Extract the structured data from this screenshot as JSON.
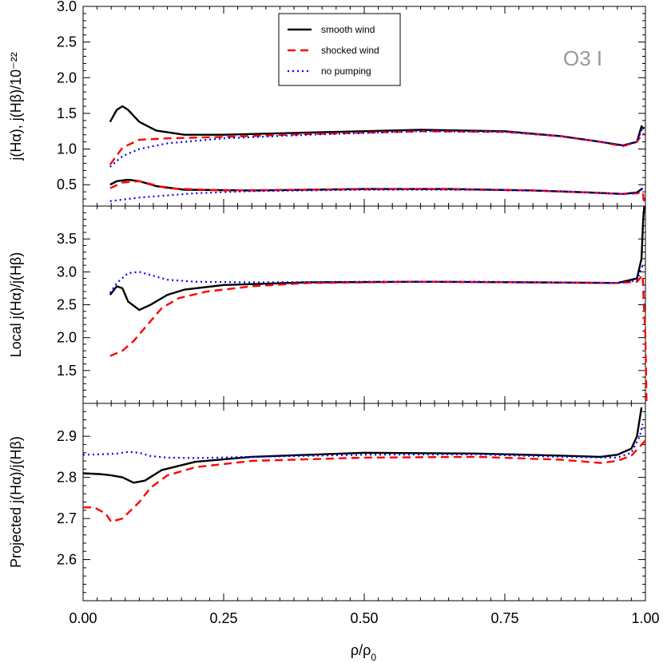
{
  "chart_data": {
    "type": "line",
    "annotation": "O3 I",
    "xlabel": "ρ/ρ₀",
    "xlim": [
      0.0,
      1.0
    ],
    "xticks": [
      "0.00",
      "0.25",
      "0.50",
      "0.75",
      "1.00"
    ],
    "legend": {
      "placement": "top-center",
      "entries": [
        {
          "name": "smooth wind",
          "color": "#000000",
          "style": "solid"
        },
        {
          "name": "shocked wind",
          "color": "#ff0000",
          "style": "dashed"
        },
        {
          "name": "no pumping",
          "color": "#0000ff",
          "style": "dotted"
        }
      ]
    },
    "panels": [
      {
        "id": "top",
        "ylabel": "j(Hα), j(Hβ)/10⁻²²",
        "ylim": [
          0.2,
          3.0
        ],
        "yticks": [
          "0.5",
          "1.0",
          "1.5",
          "2.0",
          "2.5",
          "3.0"
        ],
        "series": [
          {
            "name": "smooth wind",
            "subset": "j(Hα)",
            "x": [
              0.048,
              0.06,
              0.07,
              0.08,
              0.1,
              0.13,
              0.18,
              0.25,
              0.4,
              0.6,
              0.75,
              0.85,
              0.92,
              0.96,
              0.985,
              0.993,
              0.997
            ],
            "y": [
              1.38,
              1.55,
              1.6,
              1.55,
              1.38,
              1.26,
              1.2,
              1.2,
              1.23,
              1.27,
              1.25,
              1.18,
              1.1,
              1.05,
              1.1,
              1.32,
              1.28
            ]
          },
          {
            "name": "shocked wind",
            "subset": "j(Hα)",
            "x": [
              0.048,
              0.07,
              0.1,
              0.15,
              0.25,
              0.4,
              0.6,
              0.75,
              0.85,
              0.92,
              0.96,
              0.985,
              0.995,
              0.998
            ],
            "y": [
              0.78,
              1.02,
              1.13,
              1.15,
              1.17,
              1.21,
              1.25,
              1.24,
              1.18,
              1.1,
              1.04,
              1.1,
              1.22,
              1.2
            ]
          },
          {
            "name": "no pumping",
            "subset": "j(Hα)",
            "x": [
              0.048,
              0.07,
              0.1,
              0.15,
              0.25,
              0.4,
              0.6,
              0.75,
              0.85,
              0.92,
              0.96,
              0.985,
              0.995
            ],
            "y": [
              0.75,
              0.9,
              1.0,
              1.08,
              1.15,
              1.2,
              1.25,
              1.24,
              1.18,
              1.1,
              1.05,
              1.1,
              1.3
            ]
          },
          {
            "name": "smooth wind",
            "subset": "j(Hβ)",
            "x": [
              0.048,
              0.06,
              0.08,
              0.1,
              0.13,
              0.18,
              0.3,
              0.5,
              0.65,
              0.8,
              0.9,
              0.96,
              0.985,
              0.995
            ],
            "y": [
              0.5,
              0.55,
              0.57,
              0.55,
              0.48,
              0.43,
              0.42,
              0.44,
              0.44,
              0.42,
              0.39,
              0.37,
              0.39,
              0.45
            ]
          },
          {
            "name": "shocked wind",
            "subset": "j(Hβ)",
            "x": [
              0.048,
              0.07,
              0.1,
              0.15,
              0.25,
              0.4,
              0.6,
              0.8,
              0.9,
              0.96,
              0.985,
              0.995,
              0.999
            ],
            "y": [
              0.45,
              0.53,
              0.55,
              0.45,
              0.42,
              0.43,
              0.44,
              0.42,
              0.39,
              0.37,
              0.38,
              0.4,
              0.2
            ]
          },
          {
            "name": "no pumping",
            "subset": "j(Hβ)",
            "x": [
              0.048,
              0.1,
              0.2,
              0.3,
              0.5,
              0.7,
              0.85,
              0.96,
              0.985,
              0.995
            ],
            "y": [
              0.27,
              0.32,
              0.38,
              0.41,
              0.43,
              0.43,
              0.41,
              0.37,
              0.38,
              0.45
            ]
          }
        ]
      },
      {
        "id": "middle",
        "ylabel": "Local j(Hα)/j(Hβ)",
        "ylim": [
          1.0,
          4.0
        ],
        "yticks": [
          "1.5",
          "2.0",
          "2.5",
          "3.0",
          "3.5"
        ],
        "series": [
          {
            "name": "smooth wind",
            "x": [
              0.048,
              0.06,
              0.07,
              0.08,
              0.1,
              0.12,
              0.15,
              0.18,
              0.25,
              0.4,
              0.6,
              0.8,
              0.95,
              0.985,
              0.993,
              0.996,
              0.998
            ],
            "y": [
              2.65,
              2.78,
              2.75,
              2.55,
              2.42,
              2.5,
              2.65,
              2.73,
              2.8,
              2.84,
              2.85,
              2.84,
              2.83,
              2.9,
              3.2,
              3.8,
              4.0
            ]
          },
          {
            "name": "shocked wind",
            "x": [
              0.048,
              0.07,
              0.09,
              0.11,
              0.14,
              0.17,
              0.22,
              0.3,
              0.4,
              0.6,
              0.8,
              0.95,
              0.985,
              0.995,
              1.0,
              1.002
            ],
            "y": [
              1.72,
              1.8,
              1.95,
              2.15,
              2.45,
              2.6,
              2.7,
              2.78,
              2.83,
              2.85,
              2.84,
              2.83,
              2.85,
              2.95,
              2.0,
              1.0
            ]
          },
          {
            "name": "no pumping",
            "x": [
              0.048,
              0.06,
              0.08,
              0.1,
              0.12,
              0.15,
              0.2,
              0.3,
              0.5,
              0.7,
              0.85,
              0.95,
              0.985,
              0.995
            ],
            "y": [
              2.68,
              2.83,
              2.98,
              3.0,
              2.95,
              2.88,
              2.85,
              2.84,
              2.85,
              2.85,
              2.84,
              2.83,
              2.87,
              3.1
            ]
          }
        ]
      },
      {
        "id": "bottom",
        "ylabel": "Projected j(Hα)/j(Hβ)",
        "ylim": [
          2.5,
          2.98
        ],
        "yticks": [
          "2.6",
          "2.7",
          "2.8",
          "2.9"
        ],
        "series": [
          {
            "name": "smooth wind",
            "x": [
              0.0,
              0.03,
              0.05,
              0.07,
              0.09,
              0.11,
              0.14,
              0.2,
              0.3,
              0.5,
              0.7,
              0.85,
              0.92,
              0.95,
              0.975,
              0.985,
              0.993
            ],
            "y": [
              2.81,
              2.808,
              2.805,
              2.8,
              2.787,
              2.792,
              2.818,
              2.838,
              2.85,
              2.86,
              2.858,
              2.853,
              2.85,
              2.855,
              2.87,
              2.9,
              2.97
            ]
          },
          {
            "name": "shocked wind",
            "x": [
              0.0,
              0.02,
              0.04,
              0.05,
              0.07,
              0.1,
              0.12,
              0.15,
              0.2,
              0.3,
              0.5,
              0.7,
              0.85,
              0.92,
              0.95,
              0.975,
              0.99,
              1.0
            ],
            "y": [
              2.727,
              2.727,
              2.712,
              2.692,
              2.7,
              2.74,
              2.775,
              2.805,
              2.825,
              2.84,
              2.848,
              2.85,
              2.843,
              2.835,
              2.84,
              2.853,
              2.875,
              2.89
            ]
          },
          {
            "name": "no pumping",
            "x": [
              0.0,
              0.03,
              0.06,
              0.08,
              0.1,
              0.12,
              0.15,
              0.2,
              0.3,
              0.5,
              0.7,
              0.85,
              0.95,
              0.975,
              0.99,
              0.995
            ],
            "y": [
              2.855,
              2.856,
              2.858,
              2.862,
              2.86,
              2.852,
              2.848,
              2.847,
              2.85,
              2.855,
              2.856,
              2.85,
              2.848,
              2.86,
              2.9,
              2.93
            ]
          }
        ]
      }
    ]
  }
}
